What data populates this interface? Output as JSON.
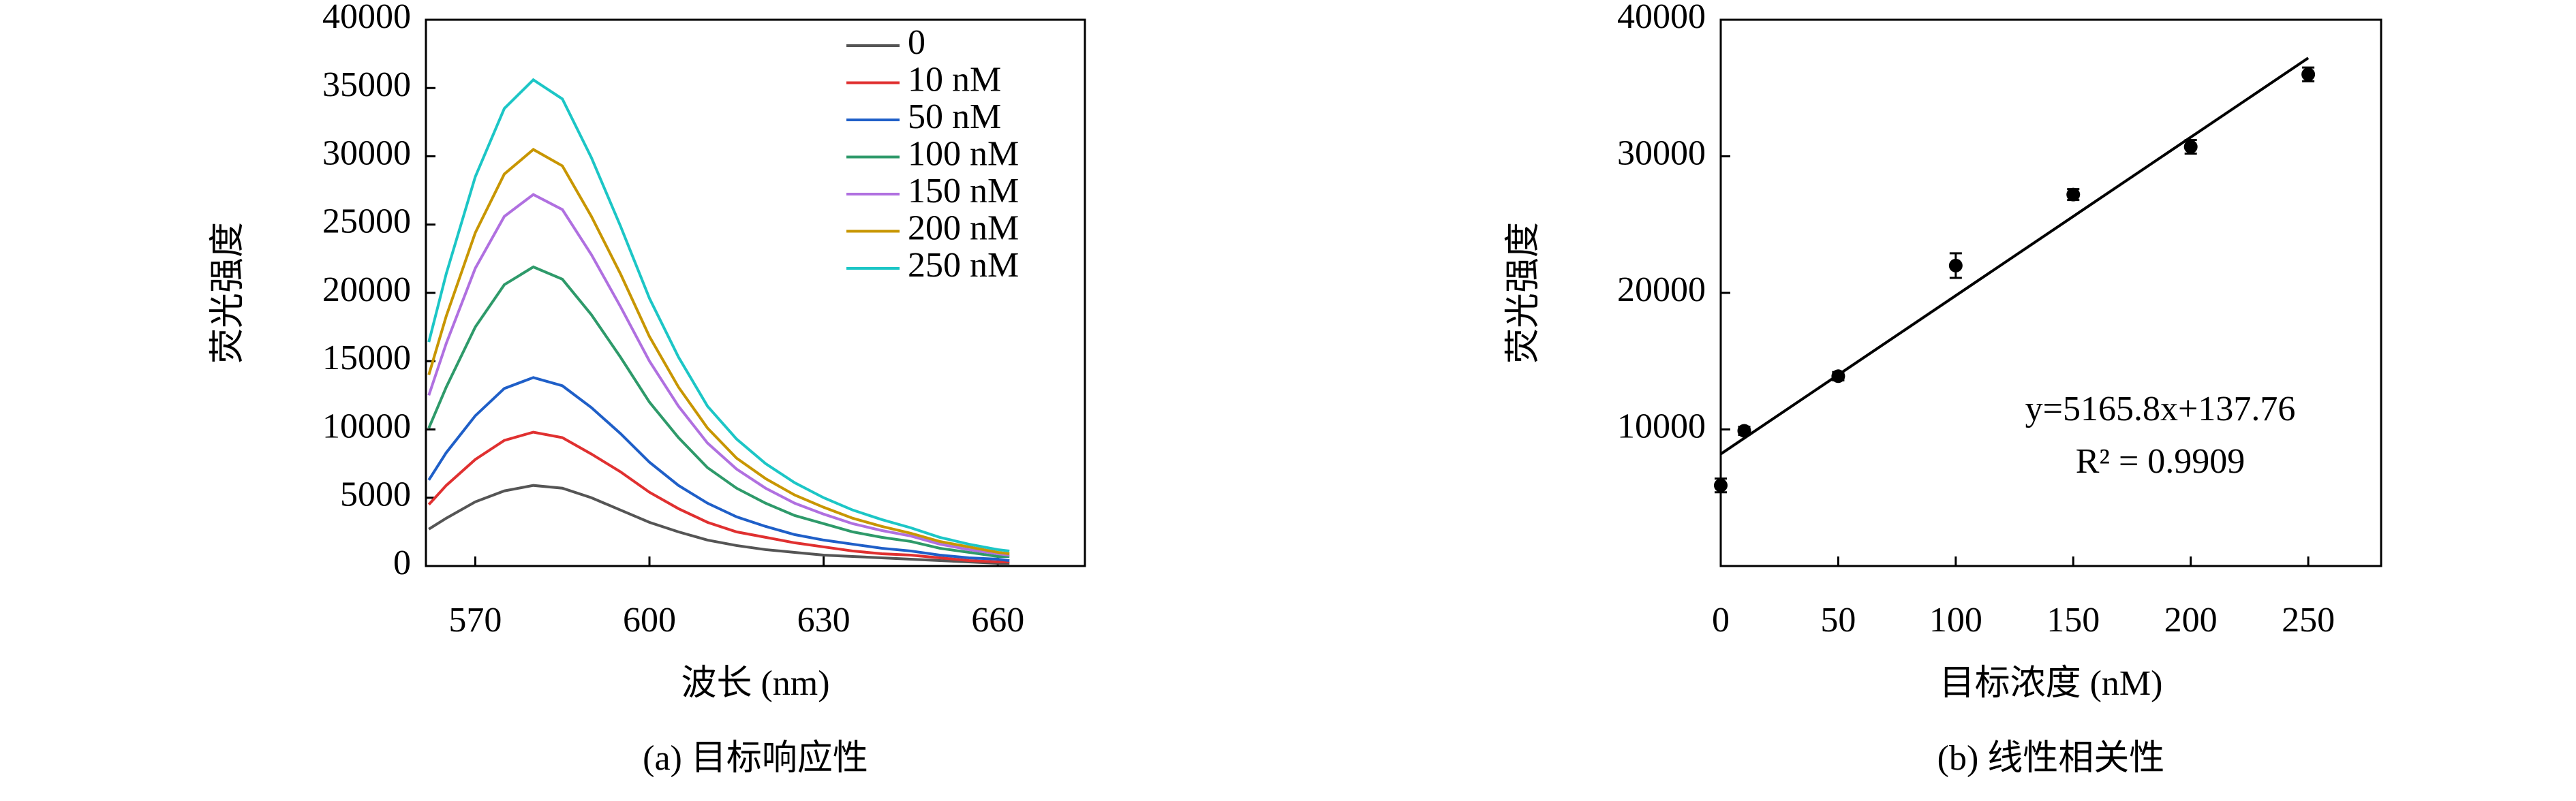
{
  "chart_data": [
    {
      "type": "line",
      "caption": "(a) 目标响应性",
      "xlabel": "波长 (nm)",
      "ylabel": "荧光强度",
      "x": [
        562,
        565,
        570,
        575,
        580,
        585,
        590,
        595,
        600,
        605,
        610,
        615,
        620,
        625,
        630,
        635,
        640,
        645,
        650,
        655,
        660,
        662
      ],
      "series": [
        {
          "name": "0",
          "color": "#555555",
          "values": [
            2700,
            3500,
            4700,
            5500,
            5900,
            5700,
            5000,
            4100,
            3200,
            2500,
            1900,
            1500,
            1200,
            1000,
            800,
            700,
            600,
            500,
            400,
            300,
            200,
            200
          ]
        },
        {
          "name": "10 nM",
          "color": "#e03030",
          "values": [
            4500,
            5900,
            7800,
            9200,
            9800,
            9400,
            8200,
            6900,
            5400,
            4200,
            3200,
            2500,
            2100,
            1700,
            1400,
            1100,
            900,
            800,
            600,
            400,
            300,
            300
          ]
        },
        {
          "name": "50 nM",
          "color": "#1f5fc8",
          "values": [
            6300,
            8300,
            11000,
            13000,
            13800,
            13200,
            11600,
            9700,
            7600,
            5900,
            4600,
            3600,
            2900,
            2300,
            1900,
            1600,
            1300,
            1100,
            800,
            600,
            500,
            400
          ]
        },
        {
          "name": "100 nM",
          "color": "#2e9a6a",
          "values": [
            10100,
            13100,
            17500,
            20600,
            21900,
            21000,
            18400,
            15300,
            12000,
            9400,
            7200,
            5700,
            4600,
            3700,
            3100,
            2500,
            2100,
            1800,
            1300,
            1000,
            700,
            700
          ]
        },
        {
          "name": "150 nM",
          "color": "#b070e0",
          "values": [
            12500,
            16300,
            21800,
            25600,
            27200,
            26100,
            22800,
            19000,
            15000,
            11700,
            9000,
            7100,
            5700,
            4600,
            3800,
            3100,
            2600,
            2200,
            1600,
            1200,
            900,
            800
          ]
        },
        {
          "name": "200 nM",
          "color": "#c89600",
          "values": [
            14000,
            18300,
            24400,
            28700,
            30500,
            29300,
            25600,
            21400,
            16800,
            13100,
            10100,
            7900,
            6400,
            5200,
            4300,
            3500,
            2900,
            2400,
            1800,
            1400,
            1000,
            900
          ]
        },
        {
          "name": "250 nM",
          "color": "#1cc6c6",
          "values": [
            16400,
            21400,
            28500,
            33500,
            35600,
            34200,
            29900,
            24900,
            19600,
            15300,
            11700,
            9300,
            7500,
            6100,
            5000,
            4100,
            3400,
            2800,
            2100,
            1600,
            1200,
            1100
          ]
        }
      ],
      "xlim": [
        561.5,
        675
      ],
      "xticks": [
        570,
        600,
        630,
        660
      ],
      "ylim": [
        0,
        40000
      ],
      "yticks": [
        0,
        5000,
        10000,
        15000,
        20000,
        25000,
        30000,
        35000,
        40000
      ],
      "legend": "upper right"
    },
    {
      "type": "scatter",
      "caption": "(b) 线性相关性",
      "xlabel": "目标浓度 (nM)",
      "ylabel": "荧光强度",
      "x": [
        0,
        10,
        50,
        100,
        150,
        200,
        250
      ],
      "values": [
        5900,
        9900,
        13900,
        22000,
        27200,
        30700,
        36000
      ],
      "errors": [
        500,
        300,
        300,
        900,
        400,
        500,
        500
      ],
      "color": "#000000",
      "fit": {
        "x": [
          0,
          250
        ],
        "y": [
          8200,
          37200
        ],
        "color": "#000000"
      },
      "annotations": [
        "y=5165.8x+137.76",
        "R² = 0.9909"
      ],
      "xlim": [
        0,
        281
      ],
      "xticks": [
        0,
        50,
        100,
        150,
        200,
        250
      ],
      "ylim": [
        0,
        40000
      ],
      "yticks": [
        10000,
        20000,
        30000,
        40000
      ]
    }
  ]
}
